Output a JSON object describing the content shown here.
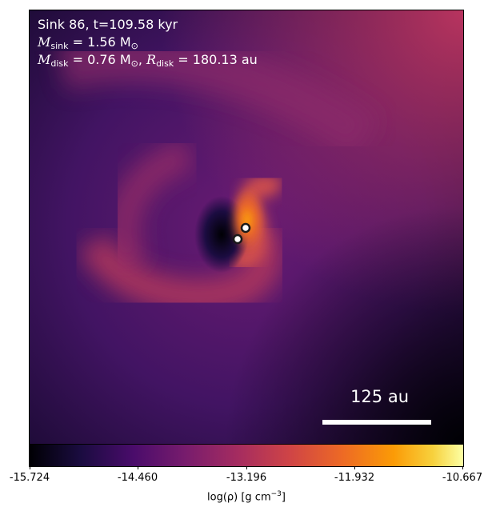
{
  "info": {
    "sink_line": "Sink 86, t=109.58 kyr",
    "mass_symbol": "M",
    "sink_sub": "sink",
    "sink_value": " = 1.56 M",
    "sun_sub": "⊙",
    "disk_sub": "disk",
    "disk_value": " = 0.76 M",
    "sep": ", ",
    "radius_symbol": "R",
    "radius_value": " = 180.13 au"
  },
  "scale_bar": {
    "label": "125 au"
  },
  "colorbar": {
    "ticks": [
      "-15.724",
      "-14.460",
      "-13.196",
      "-11.932",
      "-10.667"
    ],
    "label_main": "log(ρ) [g cm",
    "label_sup": "−3",
    "label_end": "]"
  }
}
